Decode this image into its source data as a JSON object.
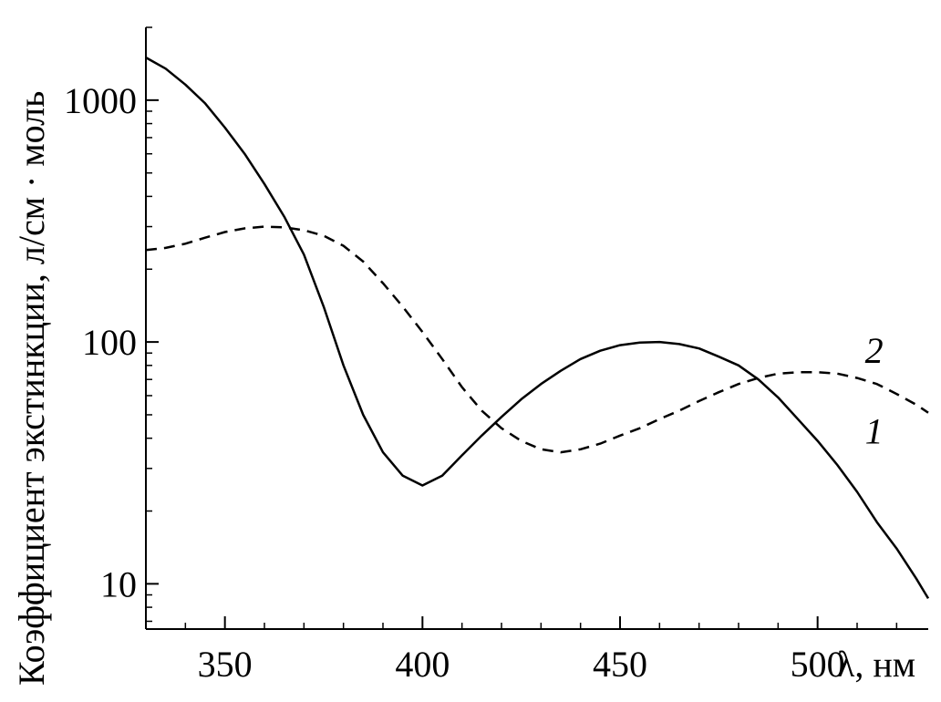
{
  "chart_data": {
    "type": "line",
    "title": "",
    "xlabel": "λ, нм",
    "ylabel": "Коэффициент экстинкции, л/см · моль",
    "xlim": [
      330,
      528
    ],
    "ylim": [
      6.5,
      2000
    ],
    "yscale": "log",
    "grid": false,
    "legend": "none",
    "xticks": [
      350,
      400,
      450,
      500
    ],
    "xtick_labels": [
      "350",
      "400",
      "450",
      "500"
    ],
    "yticks": [
      10,
      100,
      1000
    ],
    "ytick_labels": [
      "10",
      "100",
      "1000"
    ],
    "series": [
      {
        "label": "1",
        "style": "solid",
        "color": "#000000",
        "x": [
          330,
          335,
          340,
          345,
          350,
          355,
          360,
          365,
          370,
          375,
          380,
          385,
          390,
          395,
          400,
          405,
          410,
          415,
          420,
          425,
          430,
          435,
          440,
          445,
          450,
          455,
          460,
          465,
          470,
          475,
          480,
          485,
          490,
          495,
          500,
          505,
          510,
          515,
          520,
          525,
          528
        ],
        "y": [
          1500,
          1350,
          1160,
          970,
          770,
          600,
          450,
          330,
          230,
          140,
          80,
          50,
          35,
          28,
          25.5,
          28,
          34,
          41,
          49,
          58,
          67,
          76,
          85,
          92,
          97,
          99.5,
          100,
          98,
          94,
          87,
          80,
          70,
          59,
          48,
          39,
          31,
          24,
          18,
          14,
          10.5,
          8.7
        ]
      },
      {
        "label": "2",
        "style": "dashed",
        "color": "#000000",
        "x": [
          330,
          335,
          340,
          345,
          350,
          355,
          360,
          365,
          370,
          375,
          380,
          385,
          390,
          395,
          400,
          405,
          410,
          415,
          420,
          425,
          430,
          435,
          440,
          445,
          450,
          455,
          460,
          465,
          470,
          475,
          480,
          485,
          490,
          495,
          500,
          505,
          510,
          515,
          520,
          525,
          528
        ],
        "y": [
          240,
          245,
          255,
          270,
          285,
          295,
          300,
          298,
          290,
          275,
          250,
          215,
          175,
          140,
          110,
          85,
          65,
          52,
          44,
          39,
          36,
          35,
          36,
          38,
          41,
          44,
          48,
          52,
          57,
          62,
          67,
          71,
          74,
          75,
          75,
          74,
          71,
          67,
          61,
          55,
          51
        ]
      }
    ]
  }
}
